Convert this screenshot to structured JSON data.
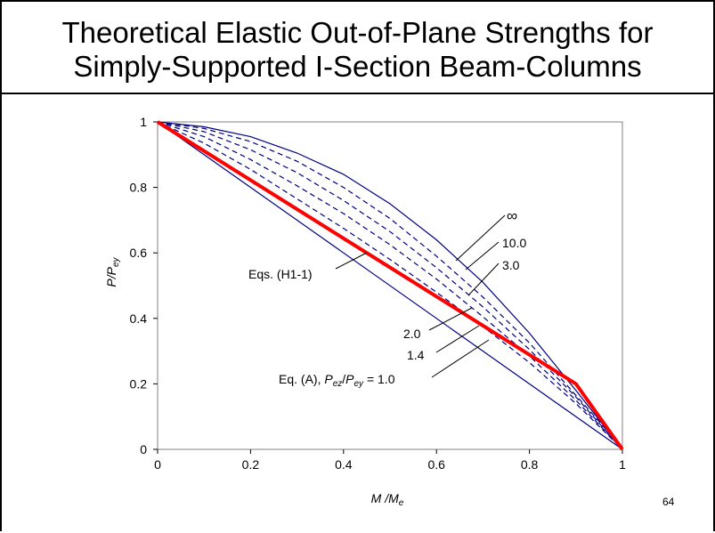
{
  "slide": {
    "title_line1": "Theoretical Elastic Out-of-Plane Strengths for",
    "title_line2": "Simply-Supported I-Section Beam-Columns",
    "page_number": "64"
  },
  "chart_data": {
    "type": "line",
    "xlabel": {
      "main": "M",
      "sep": " /",
      "base": "M",
      "sub": "e"
    },
    "ylabel": {
      "main": "P",
      "sep": "/",
      "base": "P",
      "sub": "ey"
    },
    "xlim": [
      0,
      1
    ],
    "ylim": [
      0,
      1
    ],
    "x_ticks": [
      0,
      0.2,
      0.4,
      0.6,
      0.8,
      1
    ],
    "y_ticks": [
      0,
      0.2,
      0.4,
      0.6,
      0.8,
      1
    ],
    "x_tick_labels": [
      "0",
      "0.2",
      "0.4",
      "0.6",
      "0.8",
      "1"
    ],
    "y_tick_labels": [
      "0",
      "0.2",
      "0.4",
      "0.6",
      "0.8",
      "1"
    ],
    "grid": false,
    "colors": {
      "curve": "#000080",
      "design": "#ff0000",
      "axis": "#808080"
    },
    "series": [
      {
        "label": "∞",
        "style": "solid",
        "x": [
          0,
          0.1,
          0.2,
          0.3,
          0.4,
          0.5,
          0.6,
          0.7,
          0.8,
          0.9,
          0.95,
          1
        ],
        "y": [
          1,
          0.985,
          0.955,
          0.905,
          0.84,
          0.75,
          0.64,
          0.51,
          0.355,
          0.18,
          0.09,
          0
        ]
      },
      {
        "label": "10.0",
        "style": "dashed",
        "x": [
          0,
          0.1,
          0.2,
          0.3,
          0.4,
          0.5,
          0.6,
          0.7,
          0.8,
          0.9,
          0.95,
          1
        ],
        "y": [
          1,
          0.98,
          0.94,
          0.88,
          0.8,
          0.705,
          0.59,
          0.465,
          0.325,
          0.165,
          0.085,
          0
        ]
      },
      {
        "label": "3.0",
        "style": "dashed",
        "x": [
          0,
          0.1,
          0.2,
          0.3,
          0.4,
          0.5,
          0.6,
          0.7,
          0.8,
          0.9,
          0.95,
          1
        ],
        "y": [
          1,
          0.97,
          0.915,
          0.845,
          0.76,
          0.665,
          0.555,
          0.435,
          0.305,
          0.16,
          0.08,
          0
        ]
      },
      {
        "label": "2.0",
        "style": "dashed",
        "x": [
          0,
          0.1,
          0.2,
          0.3,
          0.4,
          0.5,
          0.6,
          0.7,
          0.8,
          0.9,
          0.95,
          1
        ],
        "y": [
          1,
          0.955,
          0.885,
          0.805,
          0.72,
          0.625,
          0.52,
          0.405,
          0.285,
          0.15,
          0.075,
          0
        ]
      },
      {
        "label": "1.4",
        "style": "dashed",
        "x": [
          0,
          0.1,
          0.2,
          0.3,
          0.4,
          0.5,
          0.6,
          0.7,
          0.8,
          0.9,
          0.95,
          1
        ],
        "y": [
          1,
          0.935,
          0.855,
          0.765,
          0.675,
          0.58,
          0.48,
          0.375,
          0.265,
          0.14,
          0.07,
          0
        ]
      },
      {
        "label": "Eq. (A), Pez/Pey = 1.0",
        "style": "solid",
        "x": [
          0,
          1
        ],
        "y": [
          1,
          0
        ]
      },
      {
        "label": "Eqs. (H1-1)",
        "style": "design",
        "x": [
          0,
          0.9,
          1
        ],
        "y": [
          1,
          0.2,
          0
        ]
      }
    ],
    "annotations": {
      "inf": "∞",
      "r10": "10.0",
      "r3": "3.0",
      "r2": "2.0",
      "r14": "1.4",
      "eqA_prefix": "Eq. (A), ",
      "eqA_P1": "P",
      "eqA_sub1": "ez",
      "eqA_sep": "/",
      "eqA_P2": "P",
      "eqA_sub2": "ey",
      "eqA_suffix": " = 1.0",
      "h1": "Eqs. (H1-1)"
    }
  }
}
